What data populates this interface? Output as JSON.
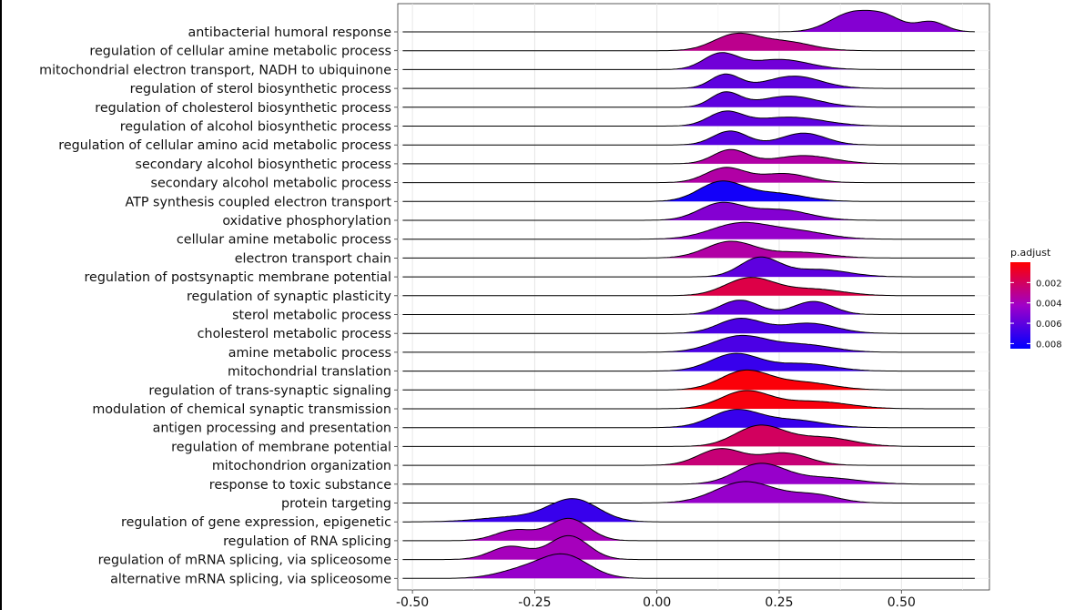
{
  "chart_data": {
    "type": "ridgeline",
    "title": "",
    "xlabel": "",
    "ylabel": "",
    "xlim": [
      -0.53,
      0.68
    ],
    "x_ticks": [
      "-0.50",
      "-0.25",
      "0.00",
      "0.25",
      "0.50"
    ],
    "x_tick_values": [
      -0.5,
      -0.25,
      0.0,
      0.25,
      0.5
    ],
    "grid": true,
    "legend": {
      "title": "p.adjust",
      "position": "right",
      "labels": [
        "0.002",
        "0.004",
        "0.006",
        "0.008"
      ],
      "label_values": [
        0.002,
        0.004,
        0.006,
        0.008
      ],
      "min": 0.0,
      "max": 0.0085,
      "low_color": "#ff0000",
      "high_color": "#0000ff",
      "mid_color": "#a000c8"
    },
    "categories": [
      "antibacterial humoral response",
      "regulation of cellular amine metabolic process",
      "mitochondrial electron transport, NADH to ubiquinone",
      "regulation of sterol biosynthetic process",
      "regulation of cholesterol biosynthetic process",
      "regulation of alcohol biosynthetic process",
      "regulation of cellular amino acid metabolic process",
      "secondary alcohol biosynthetic process",
      "secondary alcohol metabolic process",
      "ATP synthesis coupled electron transport",
      "oxidative phosphorylation",
      "cellular amine metabolic process",
      "electron transport chain",
      "regulation of postsynaptic membrane potential",
      "regulation of synaptic plasticity",
      "sterol metabolic process",
      "cholesterol metabolic process",
      "amine metabolic process",
      "mitochondrial translation",
      "regulation of trans-synaptic signaling",
      "modulation of chemical synaptic transmission",
      "antigen processing and presentation",
      "regulation of membrane potential",
      "mitochondrion organization",
      "response to toxic substance",
      "protein targeting",
      "regulation of gene expression, epigenetic",
      "regulation of RNA splicing",
      "regulation of mRNA splicing, via spliceosome",
      "alternative mRNA splicing, via spliceosome"
    ],
    "series": [
      {
        "p_adjust": 0.005,
        "peaks": [
          {
            "x": 0.4,
            "h": 1.15,
            "s": 0.045
          },
          {
            "x": 0.47,
            "h": 0.75,
            "s": 0.035
          },
          {
            "x": 0.56,
            "h": 0.62,
            "s": 0.03
          }
        ]
      },
      {
        "p_adjust": 0.003,
        "peaks": [
          {
            "x": 0.16,
            "h": 0.95,
            "s": 0.045
          },
          {
            "x": 0.26,
            "h": 0.55,
            "s": 0.055
          }
        ]
      },
      {
        "p_adjust": 0.0055,
        "peaks": [
          {
            "x": 0.13,
            "h": 0.95,
            "s": 0.035
          },
          {
            "x": 0.25,
            "h": 0.62,
            "s": 0.06
          }
        ]
      },
      {
        "p_adjust": 0.006,
        "peaks": [
          {
            "x": 0.14,
            "h": 0.85,
            "s": 0.03
          },
          {
            "x": 0.28,
            "h": 0.75,
            "s": 0.055
          }
        ]
      },
      {
        "p_adjust": 0.006,
        "peaks": [
          {
            "x": 0.14,
            "h": 0.88,
            "s": 0.03
          },
          {
            "x": 0.27,
            "h": 0.68,
            "s": 0.06
          }
        ]
      },
      {
        "p_adjust": 0.006,
        "peaks": [
          {
            "x": 0.14,
            "h": 0.82,
            "s": 0.035
          },
          {
            "x": 0.27,
            "h": 0.55,
            "s": 0.07
          }
        ]
      },
      {
        "p_adjust": 0.0062,
        "peaks": [
          {
            "x": 0.15,
            "h": 0.85,
            "s": 0.035
          },
          {
            "x": 0.3,
            "h": 0.72,
            "s": 0.045
          }
        ]
      },
      {
        "p_adjust": 0.0035,
        "peaks": [
          {
            "x": 0.15,
            "h": 0.85,
            "s": 0.035
          },
          {
            "x": 0.3,
            "h": 0.5,
            "s": 0.06
          }
        ]
      },
      {
        "p_adjust": 0.0035,
        "peaks": [
          {
            "x": 0.14,
            "h": 0.9,
            "s": 0.04
          },
          {
            "x": 0.26,
            "h": 0.55,
            "s": 0.05
          }
        ]
      },
      {
        "p_adjust": 0.008,
        "peaks": [
          {
            "x": 0.13,
            "h": 1.15,
            "s": 0.045
          },
          {
            "x": 0.24,
            "h": 0.5,
            "s": 0.06
          }
        ]
      },
      {
        "p_adjust": 0.005,
        "peaks": [
          {
            "x": 0.13,
            "h": 1.0,
            "s": 0.045
          },
          {
            "x": 0.25,
            "h": 0.65,
            "s": 0.06
          }
        ]
      },
      {
        "p_adjust": 0.0045,
        "peaks": [
          {
            "x": 0.17,
            "h": 0.95,
            "s": 0.06
          },
          {
            "x": 0.29,
            "h": 0.45,
            "s": 0.06
          }
        ]
      },
      {
        "p_adjust": 0.0035,
        "peaks": [
          {
            "x": 0.15,
            "h": 1.0,
            "s": 0.05
          },
          {
            "x": 0.29,
            "h": 0.35,
            "s": 0.06
          }
        ]
      },
      {
        "p_adjust": 0.006,
        "peaks": [
          {
            "x": 0.21,
            "h": 1.15,
            "s": 0.04
          },
          {
            "x": 0.33,
            "h": 0.45,
            "s": 0.06
          }
        ]
      },
      {
        "p_adjust": 0.0015,
        "peaks": [
          {
            "x": 0.19,
            "h": 1.08,
            "s": 0.05
          },
          {
            "x": 0.32,
            "h": 0.4,
            "s": 0.06
          }
        ]
      },
      {
        "p_adjust": 0.006,
        "peaks": [
          {
            "x": 0.17,
            "h": 0.88,
            "s": 0.04
          },
          {
            "x": 0.32,
            "h": 0.8,
            "s": 0.04
          }
        ]
      },
      {
        "p_adjust": 0.0065,
        "peaks": [
          {
            "x": 0.17,
            "h": 0.9,
            "s": 0.045
          },
          {
            "x": 0.31,
            "h": 0.62,
            "s": 0.055
          }
        ]
      },
      {
        "p_adjust": 0.0065,
        "peaks": [
          {
            "x": 0.17,
            "h": 0.98,
            "s": 0.055
          },
          {
            "x": 0.3,
            "h": 0.45,
            "s": 0.06
          }
        ]
      },
      {
        "p_adjust": 0.007,
        "peaks": [
          {
            "x": 0.16,
            "h": 1.05,
            "s": 0.05
          },
          {
            "x": 0.3,
            "h": 0.45,
            "s": 0.06
          }
        ]
      },
      {
        "p_adjust": 0.0002,
        "peaks": [
          {
            "x": 0.18,
            "h": 1.15,
            "s": 0.05
          },
          {
            "x": 0.3,
            "h": 0.45,
            "s": 0.06
          }
        ]
      },
      {
        "p_adjust": 0.0003,
        "peaks": [
          {
            "x": 0.18,
            "h": 1.05,
            "s": 0.05
          },
          {
            "x": 0.32,
            "h": 0.45,
            "s": 0.07
          }
        ]
      },
      {
        "p_adjust": 0.007,
        "peaks": [
          {
            "x": 0.16,
            "h": 1.05,
            "s": 0.05
          },
          {
            "x": 0.28,
            "h": 0.45,
            "s": 0.06
          }
        ]
      },
      {
        "p_adjust": 0.002,
        "peaks": [
          {
            "x": 0.21,
            "h": 1.25,
            "s": 0.05
          },
          {
            "x": 0.34,
            "h": 0.55,
            "s": 0.06
          }
        ]
      },
      {
        "p_adjust": 0.0025,
        "peaks": [
          {
            "x": 0.13,
            "h": 1.0,
            "s": 0.045
          },
          {
            "x": 0.26,
            "h": 0.75,
            "s": 0.05
          }
        ]
      },
      {
        "p_adjust": 0.0045,
        "peaks": [
          {
            "x": 0.21,
            "h": 1.2,
            "s": 0.05
          },
          {
            "x": 0.34,
            "h": 0.4,
            "s": 0.07
          }
        ]
      },
      {
        "p_adjust": 0.0045,
        "peaks": [
          {
            "x": 0.18,
            "h": 1.3,
            "s": 0.06
          },
          {
            "x": 0.32,
            "h": 0.5,
            "s": 0.05
          }
        ]
      },
      {
        "p_adjust": 0.007,
        "peaks": [
          {
            "x": -0.17,
            "h": 1.35,
            "s": 0.05
          },
          {
            "x": -0.29,
            "h": 0.3,
            "s": 0.07
          }
        ]
      },
      {
        "p_adjust": 0.004,
        "peaks": [
          {
            "x": -0.18,
            "h": 1.35,
            "s": 0.04
          },
          {
            "x": -0.29,
            "h": 0.65,
            "s": 0.04
          }
        ]
      },
      {
        "p_adjust": 0.004,
        "peaks": [
          {
            "x": -0.18,
            "h": 1.45,
            "s": 0.04
          },
          {
            "x": -0.3,
            "h": 0.8,
            "s": 0.04
          }
        ]
      },
      {
        "p_adjust": 0.0045,
        "peaks": [
          {
            "x": -0.19,
            "h": 1.4,
            "s": 0.05
          },
          {
            "x": -0.28,
            "h": 0.45,
            "s": 0.05
          }
        ]
      }
    ]
  }
}
